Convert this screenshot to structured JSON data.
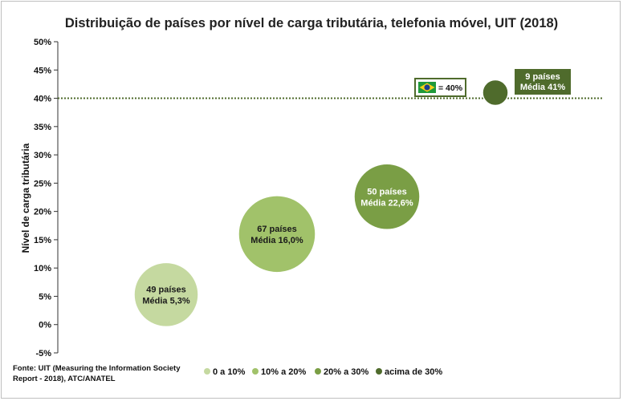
{
  "chart_data": {
    "type": "scatter",
    "title": "Distribuição de países por nível de carga tributária, telefonia móvel, UIT (2018)",
    "xlabel": "",
    "ylabel": "Nível de carga tributária",
    "ylim": [
      -5,
      50
    ],
    "yticks": [
      "-5%",
      "0%",
      "5%",
      "10%",
      "15%",
      "20%",
      "25%",
      "30%",
      "35%",
      "40%",
      "45%",
      "50%"
    ],
    "grid": false,
    "legend_position": "bottom",
    "series": [
      {
        "name": "0 a 10%",
        "x": 1,
        "y": 5.3,
        "countries": 49,
        "label_line1": "49 países",
        "label_line2": "Média 5,3%",
        "color": "#c5d9a0",
        "label_color": "#1a1a1a"
      },
      {
        "name": "10% a 20%",
        "x": 2,
        "y": 16.0,
        "countries": 67,
        "label_line1": "67 países",
        "label_line2": "Média 16,0%",
        "color": "#a1c26a",
        "label_color": "#1a1a1a"
      },
      {
        "name": "20% a 30%",
        "x": 3,
        "y": 22.6,
        "countries": 50,
        "label_line1": "50 países",
        "label_line2": "Média 22,6%",
        "color": "#7a9e45",
        "label_color": "#ffffff"
      },
      {
        "name": "acima de 30%",
        "x": 4,
        "y": 41,
        "countries": 9,
        "label_line1": "9 países",
        "label_line2": "Média 41%",
        "color": "#4f6b2c",
        "label_color": "#ffffff"
      }
    ],
    "reference_line": {
      "y": 40,
      "label": "= 40%",
      "color": "#4f6b2c"
    },
    "source": [
      "Fonte: UIT (Measuring the Information Society",
      "Report - 2018), ATC/ANATEL"
    ]
  }
}
